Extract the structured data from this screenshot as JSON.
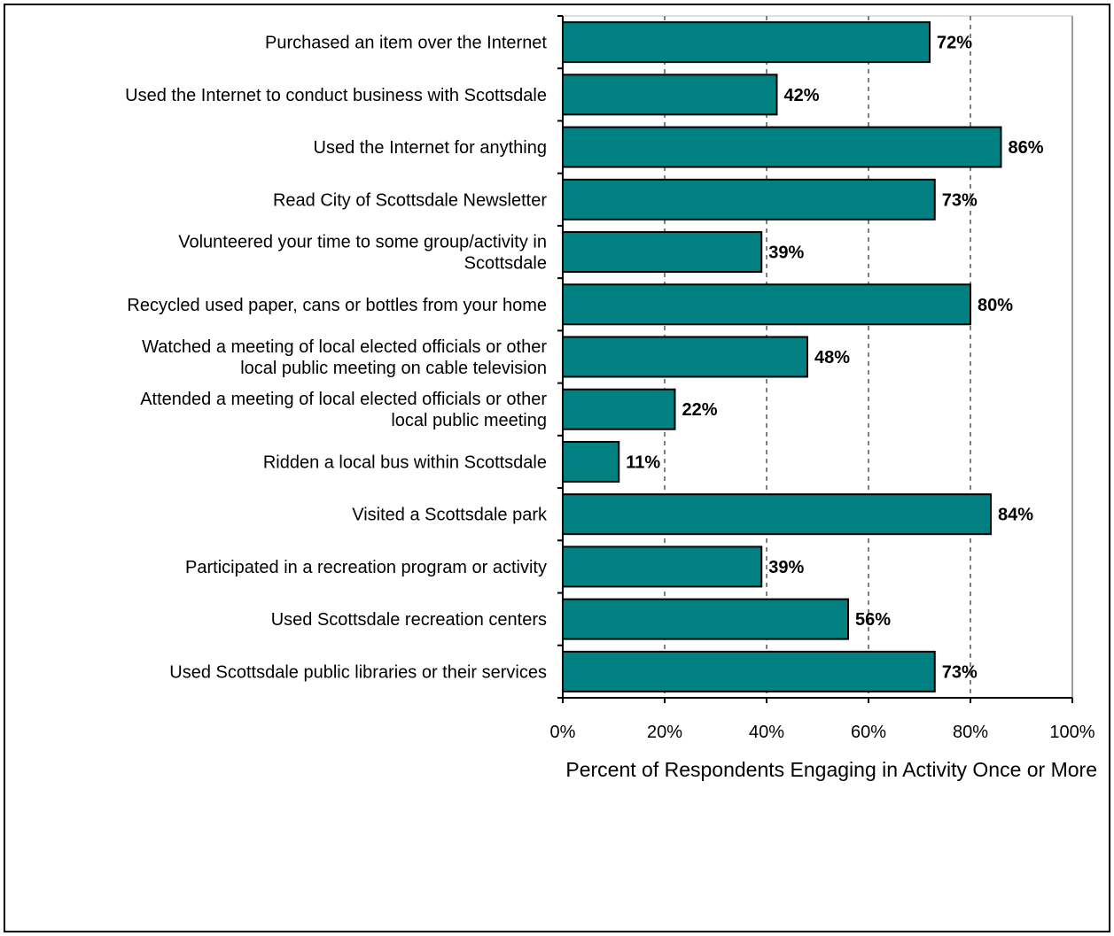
{
  "chart_data": {
    "type": "bar",
    "orientation": "horizontal",
    "categories": [
      [
        "Purchased an item over the Internet"
      ],
      [
        "Used the Internet to conduct business with Scottsdale"
      ],
      [
        "Used the Internet for anything"
      ],
      [
        "Read City of Scottsdale Newsletter"
      ],
      [
        "Volunteered your time to some group/activity in",
        "Scottsdale"
      ],
      [
        "Recycled used paper, cans or bottles from your home"
      ],
      [
        "Watched a meeting of local elected officials or other",
        "local public meeting on cable television"
      ],
      [
        "Attended a meeting of local elected officials or other",
        "local public meeting"
      ],
      [
        "Ridden a local bus within Scottsdale"
      ],
      [
        "Visited a Scottsdale park"
      ],
      [
        "Participated in a recreation program or activity"
      ],
      [
        "Used Scottsdale recreation centers"
      ],
      [
        "Used Scottsdale public libraries or their services"
      ]
    ],
    "values": [
      72,
      42,
      86,
      73,
      39,
      80,
      48,
      22,
      11,
      84,
      39,
      56,
      73
    ],
    "data_labels": [
      "72%",
      "42%",
      "86%",
      "73%",
      "39%",
      "80%",
      "48%",
      "22%",
      "11%",
      "84%",
      "39%",
      "56%",
      "73%"
    ],
    "xticks": [
      "0%",
      "20%",
      "40%",
      "60%",
      "80%",
      "100%"
    ],
    "xlim": [
      0,
      100
    ],
    "xlabel": "Percent of Respondents Engaging in Activity Once or More",
    "grid": "vertical dashed",
    "bar_color": "#008080",
    "grid_color": "#808080"
  }
}
